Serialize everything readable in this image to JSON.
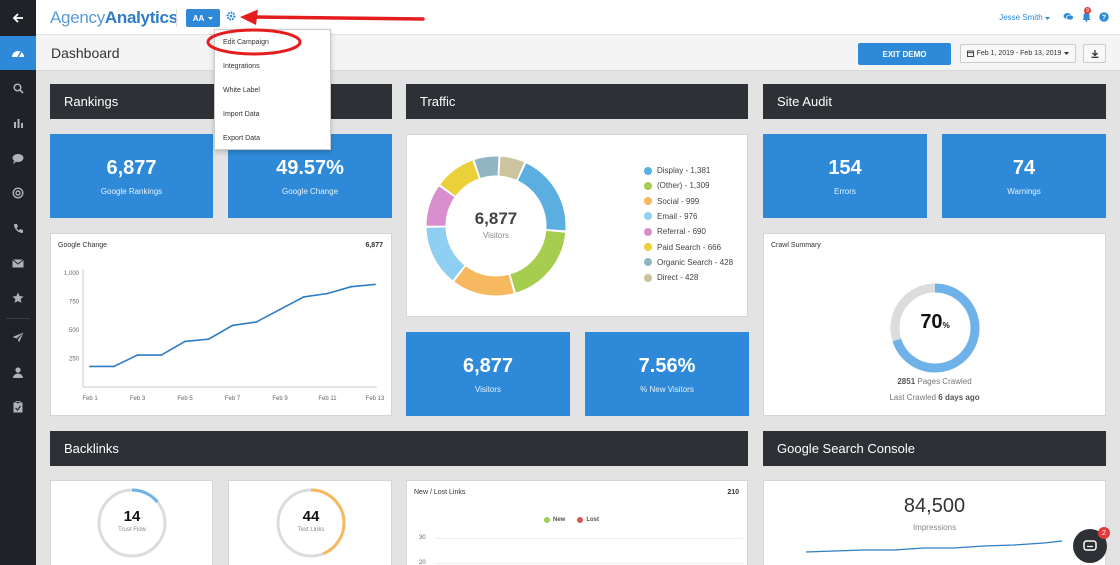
{
  "brand": {
    "name_part1": "Agency",
    "name_part2": "Analytics"
  },
  "topbar": {
    "campaign_badge": "AA",
    "user_name": "Jesse Smith",
    "notification_count": "9"
  },
  "header": {
    "page_title": "Dashboard",
    "exit_demo_label": "EXIT DEMO",
    "date_range": "Feb 1, 2019 - Feb 13, 2019"
  },
  "dropdown": {
    "items": [
      "Edit Campaign",
      "Integrations",
      "White Label",
      "Import Data",
      "Export Data"
    ]
  },
  "sidebar": {
    "icons": [
      "arrow-left-icon",
      "dashboard-icon",
      "search-icon",
      "bar-chart-icon",
      "chat-icon",
      "at-icon",
      "phone-icon",
      "mail-icon",
      "star-icon",
      "send-icon",
      "user-icon",
      "clipboard-icon"
    ]
  },
  "rankings": {
    "section_title": "Rankings",
    "google_rankings_value": "6,877",
    "google_rankings_label": "Google Rankings",
    "google_change_value": "49.57%",
    "google_change_label": "Google Change",
    "chart_title": "Google Change",
    "chart_count": "6,877"
  },
  "traffic": {
    "section_title": "Traffic",
    "donut_value": "6,877",
    "donut_label": "Visitors",
    "legend": [
      {
        "label": "Display - 1,381",
        "color": "#5aaee0"
      },
      {
        "label": "(Other) - 1,309",
        "color": "#a6cd4f"
      },
      {
        "label": "Social - 999",
        "color": "#f6b960"
      },
      {
        "label": "Email - 976",
        "color": "#8fcff2"
      },
      {
        "label": "Referral - 690",
        "color": "#d98fcd"
      },
      {
        "label": "Paid Search - 666",
        "color": "#ecd03a"
      },
      {
        "label": "Organic Search - 428",
        "color": "#8fb6c2"
      },
      {
        "label": "Direct - 428",
        "color": "#cdc39f"
      }
    ],
    "visitors_value": "6,877",
    "visitors_label": "Visitors",
    "new_visitors_value": "7.56%",
    "new_visitors_label": "% New Visitors"
  },
  "site_audit": {
    "section_title": "Site Audit",
    "errors_value": "154",
    "errors_label": "Errors",
    "warnings_value": "74",
    "warnings_label": "Warnings",
    "crawl_title": "Crawl Summary",
    "crawl_percent": "70",
    "crawl_percent_sign": "%",
    "pages_crawled_count": "2851",
    "pages_crawled_label": "Pages Crawled",
    "last_crawled_label": "Last Crawled",
    "last_crawled_value": "6 days ago"
  },
  "backlinks": {
    "section_title": "Backlinks",
    "trust_flow_value": "14",
    "trust_flow_label": "Trust Flow",
    "text_links_value": "44",
    "text_links_label": "Text Links",
    "links_chart_title": "New / Lost Links",
    "links_chart_count": "210",
    "legend_new": "New",
    "legend_lost": "Lost",
    "y_ticks": [
      "30",
      "20"
    ]
  },
  "search_console": {
    "section_title": "Google Search Console",
    "impressions_value": "84,500",
    "impressions_label": "Impressions"
  },
  "chat": {
    "badge": "2"
  },
  "chart_data": {
    "type": "line",
    "title": "Google Change",
    "x_ticks": [
      "Feb 1",
      "Feb 3",
      "Feb 5",
      "Feb 7",
      "Feb 9",
      "Feb 11",
      "Feb 13"
    ],
    "y_ticks": [
      "1,000",
      "750",
      "500",
      "250"
    ],
    "ylim": [
      0,
      1000
    ],
    "x": [
      "Feb 1",
      "Feb 2",
      "Feb 3",
      "Feb 4",
      "Feb 5",
      "Feb 6",
      "Feb 7",
      "Feb 8",
      "Feb 9",
      "Feb 10",
      "Feb 11",
      "Feb 12",
      "Feb 13"
    ],
    "values": [
      180,
      180,
      280,
      280,
      400,
      420,
      540,
      570,
      680,
      790,
      820,
      880,
      900
    ],
    "color": "#2e7cc5",
    "grid": false
  }
}
